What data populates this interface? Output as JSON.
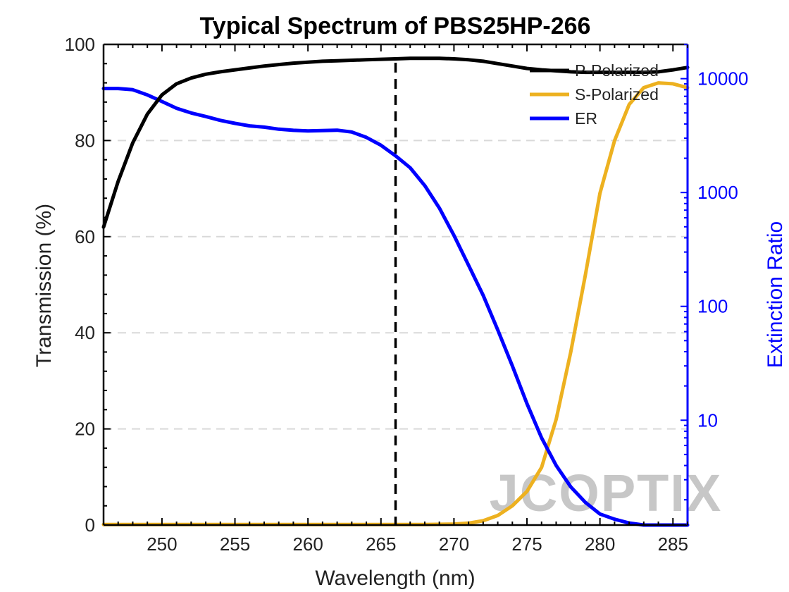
{
  "chart_data": {
    "type": "line",
    "title": "Typical Spectrum of PBS25HP-266",
    "xlabel": "Wavelength (nm)",
    "ylabel_left": "Transmission (%)",
    "ylabel_right": "Extinction Ratio",
    "xlim": [
      246,
      286
    ],
    "ylim_left": [
      0,
      100
    ],
    "ylim_right": [
      1.2,
      20000
    ],
    "right_axis_scale": "log",
    "x_ticks": [
      250,
      255,
      260,
      265,
      270,
      275,
      280,
      285
    ],
    "y_ticks_left": [
      0,
      20,
      40,
      60,
      80,
      100
    ],
    "y_ticks_right": [
      10,
      100,
      1000,
      10000
    ],
    "grid": "horizontal dashed",
    "legend_position": "top-right",
    "reference_line_x": 266,
    "series": [
      {
        "name": "P-Polarized",
        "axis": "left",
        "color": "#000000",
        "x": [
          246,
          247,
          248,
          249,
          250,
          251,
          252,
          253,
          254,
          255,
          256,
          257,
          258,
          259,
          260,
          261,
          262,
          263,
          264,
          265,
          266,
          267,
          268,
          269,
          270,
          271,
          272,
          273,
          274,
          275,
          276,
          277,
          278,
          279,
          280,
          281,
          282,
          283,
          284,
          285,
          286
        ],
        "values": [
          62,
          71.5,
          79.5,
          85.5,
          89.5,
          91.8,
          93.0,
          93.8,
          94.3,
          94.7,
          95.1,
          95.5,
          95.8,
          96.1,
          96.3,
          96.5,
          96.6,
          96.7,
          96.8,
          96.9,
          97.0,
          97.1,
          97.1,
          97.1,
          97.0,
          96.8,
          96.5,
          96.0,
          95.5,
          95.0,
          94.7,
          94.5,
          94.3,
          94.2,
          94.2,
          94.2,
          94.2,
          94.2,
          94.3,
          94.7,
          95.2
        ]
      },
      {
        "name": "S-Polarized",
        "axis": "left",
        "color": "#EDB120",
        "x": [
          246,
          250,
          255,
          260,
          265,
          266,
          268,
          270,
          271,
          272,
          273,
          274,
          275,
          276,
          277,
          278,
          279,
          280,
          281,
          282,
          283,
          284,
          285,
          286
        ],
        "values": [
          0.1,
          0.1,
          0.1,
          0.1,
          0.1,
          0.1,
          0.1,
          0.2,
          0.4,
          0.9,
          2.0,
          4.0,
          7.0,
          12.0,
          22.0,
          36.0,
          52.0,
          69.0,
          80.0,
          87.5,
          91.0,
          92.0,
          91.8,
          91.0
        ]
      },
      {
        "name": "ER",
        "axis": "right",
        "color": "#0000FF",
        "x": [
          246,
          247,
          248,
          249,
          250,
          251,
          252,
          253,
          254,
          255,
          256,
          257,
          258,
          259,
          260,
          261,
          262,
          263,
          264,
          265,
          266,
          267,
          268,
          269,
          270,
          271,
          272,
          273,
          274,
          275,
          276,
          277,
          278,
          279,
          280,
          281,
          282,
          283,
          284,
          285,
          286
        ],
        "values": [
          8200,
          8200,
          8000,
          7200,
          6300,
          5500,
          5000,
          4650,
          4300,
          4050,
          3850,
          3750,
          3600,
          3520,
          3480,
          3500,
          3530,
          3400,
          3050,
          2600,
          2100,
          1650,
          1150,
          730,
          420,
          230,
          125,
          62,
          30,
          14,
          7.0,
          4.0,
          2.6,
          1.9,
          1.5,
          1.35,
          1.25,
          1.2,
          1.2,
          1.2,
          1.2
        ]
      }
    ]
  },
  "watermark": {
    "text": "JCOPTIX"
  },
  "colors": {
    "axis": "#000000",
    "right_axis": "#0000FF",
    "grid": "#d9d9d9",
    "ref_line": "#000000"
  }
}
